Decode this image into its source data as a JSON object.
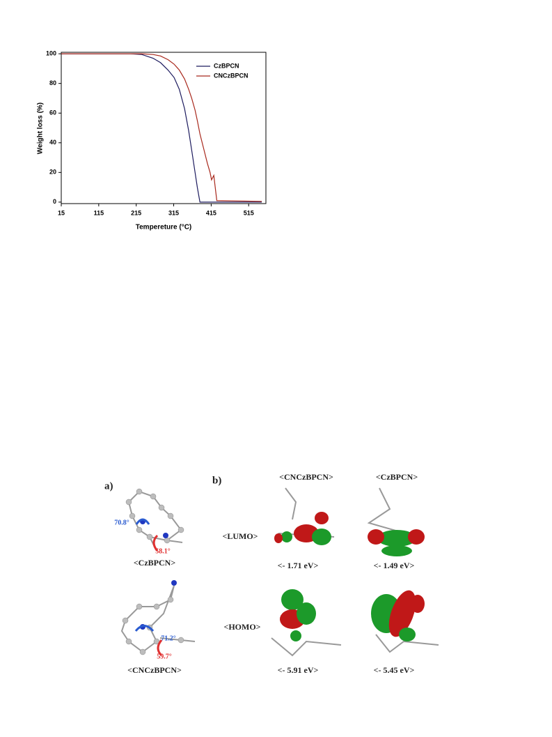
{
  "chart_data": {
    "type": "line",
    "xlabel": "Tempereture (°C)",
    "ylabel": "Weight loss (%)",
    "x": [
      15,
      200,
      230,
      260,
      280,
      300,
      316,
      330,
      344,
      355,
      363,
      372,
      378,
      385,
      395,
      405,
      412,
      416,
      422,
      430,
      550
    ],
    "series": [
      {
        "name": "CzBPCN",
        "color": "#1c1a5e",
        "values": [
          100,
          100,
          99.5,
          97,
          94,
          89,
          84,
          76,
          63,
          48,
          35,
          20,
          10,
          0,
          0,
          0,
          0,
          0,
          0,
          0,
          0
        ]
      },
      {
        "name": "CNCzBPCN",
        "color": "#a8281c",
        "values": [
          100,
          100,
          100,
          99.5,
          98.5,
          96,
          93,
          89,
          83,
          76,
          70,
          62,
          55,
          46,
          36,
          26,
          20,
          15,
          18,
          1,
          0.5
        ]
      }
    ],
    "xlim": [
      15,
      561
    ],
    "ylim": [
      -1,
      101
    ],
    "xticks": [
      15,
      115,
      215,
      315,
      415,
      515
    ],
    "yticks": [
      0,
      20,
      40,
      60,
      80,
      100
    ],
    "legend": "upper right"
  },
  "figure": {
    "panel_labels": [
      "a)",
      "b)"
    ],
    "columns": [
      "<CNCzBPCN>",
      "<CzBPCN>"
    ],
    "rows": [
      "<LUMO>",
      "<HOMO>"
    ],
    "energies": [
      [
        "<- 1.71 eV>",
        "<- 1.49 eV>"
      ],
      [
        "<- 5.91 eV>",
        "<- 5.45 eV>"
      ]
    ],
    "molecules": [
      {
        "name": "<CzBPCN>",
        "angles": [
          "70.8°",
          "58.1°"
        ]
      },
      {
        "name": "<CNCzBPCN>",
        "angles": [
          "71.2°",
          "59.7°"
        ]
      }
    ]
  }
}
